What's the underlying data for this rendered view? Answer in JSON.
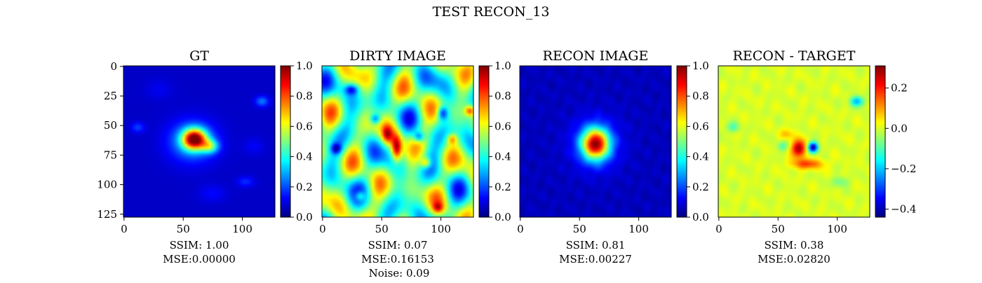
{
  "figure": {
    "title": "TEST RECON_13"
  },
  "colormaps": {
    "jet": [
      "#00007f",
      "#0000ff",
      "#007fff",
      "#00ffff",
      "#7fff7f",
      "#ffff00",
      "#ff7f00",
      "#ff0000",
      "#7f0000"
    ]
  },
  "chart_data": [
    {
      "type": "heatmap",
      "title": "GT",
      "image_size": [
        128,
        128
      ],
      "x_ticks": [
        "0",
        "50",
        "100"
      ],
      "y_ticks": [
        "0",
        "25",
        "50",
        "75",
        "100",
        "125"
      ],
      "colorbar": {
        "range": [
          0.0,
          1.0
        ],
        "ticks": [
          "0.0",
          "0.2",
          "0.4",
          "0.6",
          "0.8",
          "1.0"
        ]
      },
      "background_value": 0.07,
      "blobs": [
        {
          "cx": 60,
          "cy": 62,
          "sx": 7,
          "sy": 6,
          "v": 0.85
        },
        {
          "cx": 73,
          "cy": 68,
          "sx": 5,
          "sy": 4,
          "v": 0.35
        },
        {
          "cx": 58,
          "cy": 64,
          "sx": 14,
          "sy": 12,
          "v": 0.22
        },
        {
          "cx": 117,
          "cy": 30,
          "sx": 4,
          "sy": 3,
          "v": 0.18
        },
        {
          "cx": 12,
          "cy": 52,
          "sx": 4,
          "sy": 3,
          "v": 0.12
        },
        {
          "cx": 103,
          "cy": 98,
          "sx": 5,
          "sy": 3,
          "v": 0.1
        },
        {
          "cx": 75,
          "cy": 108,
          "sx": 8,
          "sy": 5,
          "v": 0.06
        },
        {
          "cx": 30,
          "cy": 20,
          "sx": 8,
          "sy": 6,
          "v": 0.04
        },
        {
          "cx": 110,
          "cy": 68,
          "sx": 6,
          "sy": 5,
          "v": 0.05
        }
      ],
      "texture": null,
      "annotations": [
        "SSIM: 1.00",
        "MSE:0.00000"
      ]
    },
    {
      "type": "heatmap",
      "title": "DIRTY IMAGE",
      "image_size": [
        128,
        128
      ],
      "x_ticks": [
        "0",
        "50",
        "100"
      ],
      "y_ticks": [],
      "colorbar": {
        "range": [
          0.0,
          1.0
        ],
        "ticks": [
          "0.0",
          "0.2",
          "0.4",
          "0.6",
          "0.8",
          "1.0"
        ]
      },
      "background_value": 0.47,
      "blobs": [
        {
          "cx": 63,
          "cy": 70,
          "sx": 3,
          "sy": 8,
          "v": 0.45
        },
        {
          "cx": 55,
          "cy": 58,
          "sx": 3,
          "sy": 5,
          "v": 0.3
        },
        {
          "cx": 88,
          "cy": 82,
          "sx": 3,
          "sy": 3,
          "v": 0.3
        },
        {
          "cx": 125,
          "cy": 38,
          "sx": 3,
          "sy": 3,
          "v": 0.35
        },
        {
          "cx": 110,
          "cy": 62,
          "sx": 3,
          "sy": 3,
          "v": 0.25
        },
        {
          "cx": 98,
          "cy": 120,
          "sx": 3,
          "sy": 3,
          "v": 0.25
        },
        {
          "cx": 32,
          "cy": 110,
          "sx": 3,
          "sy": 3,
          "v": 0.25
        },
        {
          "cx": 45,
          "cy": 45,
          "sx": 3,
          "sy": 3,
          "v": -0.3
        },
        {
          "cx": 102,
          "cy": 40,
          "sx": 3,
          "sy": 4,
          "v": -0.35
        },
        {
          "cx": 12,
          "cy": 70,
          "sx": 3,
          "sy": 3,
          "v": -0.3
        },
        {
          "cx": 82,
          "cy": 60,
          "sx": 3,
          "sy": 3,
          "v": -0.3
        },
        {
          "cx": 25,
          "cy": 20,
          "sx": 4,
          "sy": 3,
          "v": -0.3
        }
      ],
      "texture": {
        "amplitude": 0.3,
        "freq": 0.11
      },
      "annotations": [
        "SSIM: 0.07",
        "MSE:0.16153",
        "Noise: 0.09"
      ]
    },
    {
      "type": "heatmap",
      "title": "RECON IMAGE",
      "image_size": [
        128,
        128
      ],
      "x_ticks": [
        "0",
        "50",
        "100"
      ],
      "y_ticks": [],
      "colorbar": {
        "range": [
          0.0,
          1.0
        ],
        "ticks": [
          "0.0",
          "0.2",
          "0.4",
          "0.6",
          "0.8",
          "1.0"
        ]
      },
      "background_value": 0.06,
      "blobs": [
        {
          "cx": 64,
          "cy": 66,
          "sx": 8,
          "sy": 9,
          "v": 0.82
        },
        {
          "cx": 64,
          "cy": 66,
          "sx": 15,
          "sy": 16,
          "v": 0.12
        }
      ],
      "texture": {
        "amplitude": 0.02,
        "freq": 0.3
      },
      "annotations": [
        "SSIM: 0.81",
        "MSE:0.00227"
      ]
    },
    {
      "type": "heatmap",
      "title": "RECON - TARGET",
      "image_size": [
        128,
        128
      ],
      "x_ticks": [
        "0",
        "50",
        "100"
      ],
      "y_ticks": [],
      "colorbar": {
        "range": [
          -0.44,
          0.31
        ],
        "ticks": [
          "0.2",
          "0.0",
          "−0.2",
          "−0.4"
        ],
        "tick_values": [
          0.2,
          0.0,
          -0.2,
          -0.4
        ]
      },
      "background_value": 0.0,
      "blobs": [
        {
          "cx": 68,
          "cy": 70,
          "sx": 4,
          "sy": 5,
          "v": 0.3
        },
        {
          "cx": 75,
          "cy": 83,
          "sx": 9,
          "sy": 3,
          "v": 0.17
        },
        {
          "cx": 80,
          "cy": 69,
          "sx": 3,
          "sy": 3,
          "v": -0.42
        },
        {
          "cx": 58,
          "cy": 58,
          "sx": 4,
          "sy": 3,
          "v": 0.08
        },
        {
          "cx": 117,
          "cy": 30,
          "sx": 4,
          "sy": 3,
          "v": -0.22
        },
        {
          "cx": 12,
          "cy": 52,
          "sx": 4,
          "sy": 3,
          "v": -0.1
        },
        {
          "cx": 103,
          "cy": 98,
          "sx": 5,
          "sy": 3,
          "v": -0.08
        },
        {
          "cx": 54,
          "cy": 68,
          "sx": 3,
          "sy": 3,
          "v": -0.1
        }
      ],
      "texture": {
        "amplitude": 0.02,
        "freq": 0.25
      },
      "annotations": [
        "SSIM: 0.38",
        "MSE:0.02820"
      ]
    }
  ]
}
